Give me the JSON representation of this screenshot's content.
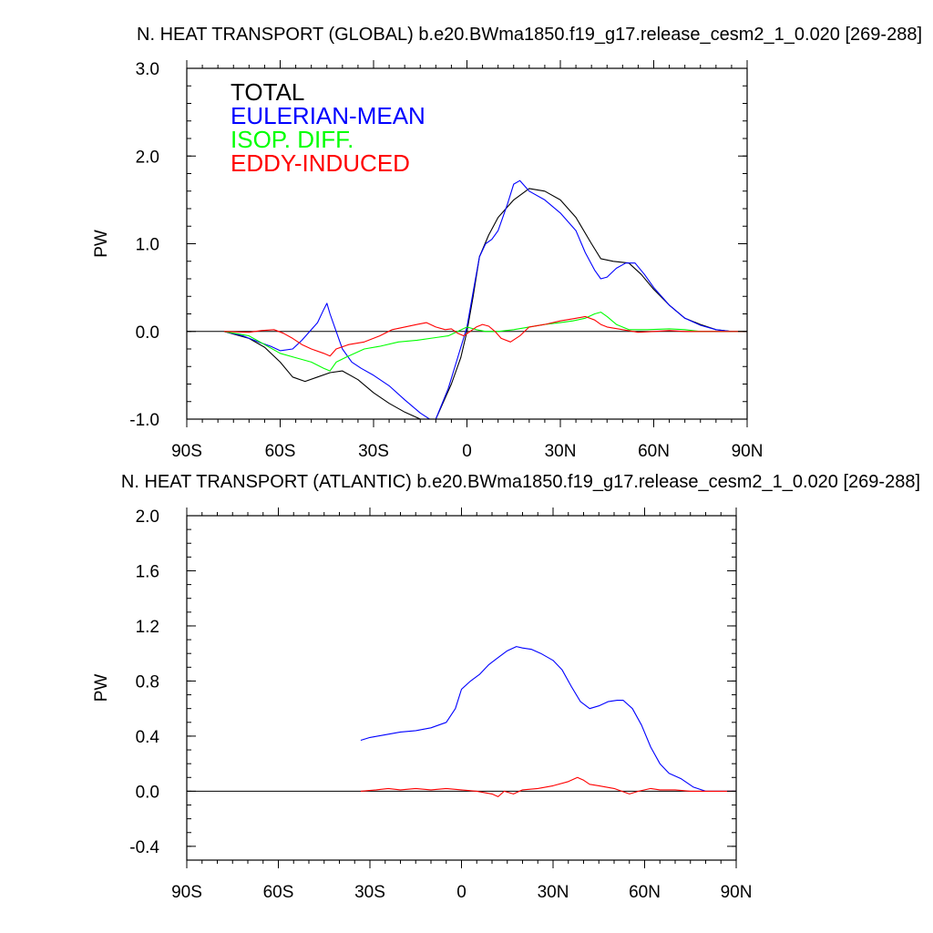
{
  "chart_data": [
    {
      "type": "line",
      "title": "N. HEAT TRANSPORT (GLOBAL) b.e20.BWma1850.f19_g17.release_cesm2_1_0.020 [269-288]",
      "ylabel": "PW",
      "xlabel": "",
      "xlim": [
        -90,
        90
      ],
      "ylim": [
        -1.0,
        3.0
      ],
      "x_ticks": [
        -90,
        -60,
        -30,
        0,
        30,
        60,
        90
      ],
      "x_tick_labels": [
        "90S",
        "60S",
        "30S",
        "0",
        "30N",
        "60N",
        "90N"
      ],
      "y_ticks": [
        -1.0,
        0.0,
        1.0,
        2.0,
        3.0
      ],
      "y_tick_labels": [
        "-1.0",
        "0.0",
        "1.0",
        "2.0",
        "3.0"
      ],
      "legend_position": "top-left",
      "zero_line": true,
      "series": [
        {
          "name": "TOTAL",
          "color": "#000000",
          "x": [
            -78,
            -70,
            -65,
            -60,
            -56,
            -52,
            -48,
            -44,
            -40,
            -35,
            -30,
            -25,
            -20,
            -15,
            -10,
            -5,
            -2,
            0,
            2,
            4,
            7,
            10,
            15,
            20,
            25,
            30,
            35,
            40,
            43,
            47,
            52,
            56,
            60,
            65,
            70,
            75,
            80,
            85,
            90
          ],
          "y": [
            0.0,
            -0.08,
            -0.18,
            -0.35,
            -0.52,
            -0.57,
            -0.52,
            -0.47,
            -0.45,
            -0.55,
            -0.7,
            -0.82,
            -0.92,
            -1.0,
            -1.0,
            -0.6,
            -0.3,
            0.0,
            0.4,
            0.85,
            1.1,
            1.3,
            1.5,
            1.63,
            1.6,
            1.5,
            1.3,
            1.0,
            0.83,
            0.8,
            0.78,
            0.65,
            0.48,
            0.3,
            0.15,
            0.08,
            0.02,
            0.0,
            0.0
          ]
        },
        {
          "name": "EULERIAN-MEAN",
          "color": "#0000ff",
          "x": [
            -78,
            -72,
            -67,
            -63,
            -60,
            -56,
            -53,
            -50,
            -48,
            -46,
            -45,
            -44,
            -42,
            -40,
            -37,
            -34,
            -30,
            -25,
            -20,
            -15,
            -12,
            -10,
            -6,
            -3,
            0,
            2,
            4,
            6,
            8,
            10,
            13,
            15,
            17,
            20,
            25,
            30,
            35,
            38,
            41,
            43,
            45,
            48,
            51,
            54,
            57,
            60,
            65,
            70,
            75,
            80,
            85,
            90
          ],
          "y": [
            0.0,
            -0.05,
            -0.12,
            -0.17,
            -0.22,
            -0.2,
            -0.1,
            0.02,
            0.1,
            0.25,
            0.32,
            0.2,
            0.0,
            -0.2,
            -0.35,
            -0.42,
            -0.5,
            -0.62,
            -0.78,
            -0.93,
            -1.0,
            -1.0,
            -0.65,
            -0.3,
            0.05,
            0.45,
            0.85,
            1.0,
            1.05,
            1.15,
            1.45,
            1.68,
            1.72,
            1.6,
            1.5,
            1.35,
            1.15,
            0.9,
            0.7,
            0.6,
            0.62,
            0.72,
            0.78,
            0.78,
            0.65,
            0.5,
            0.3,
            0.15,
            0.07,
            0.02,
            0.0,
            0.0
          ]
        },
        {
          "name": "ISOP. DIFF.",
          "color": "#00ff00",
          "x": [
            -78,
            -70,
            -65,
            -60,
            -55,
            -50,
            -46,
            -44,
            -42,
            -38,
            -33,
            -28,
            -22,
            -16,
            -10,
            -6,
            -3,
            0,
            3,
            6,
            10,
            15,
            20,
            25,
            30,
            34,
            38,
            41,
            43,
            45,
            48,
            52,
            58,
            65,
            70,
            75,
            80,
            90
          ],
          "y": [
            0.0,
            -0.05,
            -0.15,
            -0.25,
            -0.3,
            -0.35,
            -0.42,
            -0.45,
            -0.35,
            -0.28,
            -0.2,
            -0.17,
            -0.12,
            -0.1,
            -0.07,
            -0.05,
            0.0,
            0.05,
            0.02,
            0.0,
            0.0,
            0.02,
            0.05,
            0.08,
            0.1,
            0.12,
            0.15,
            0.2,
            0.22,
            0.17,
            0.08,
            0.02,
            0.02,
            0.03,
            0.02,
            0.0,
            0.0,
            0.0
          ]
        },
        {
          "name": "EDDY-INDUCED",
          "color": "#ff0000",
          "x": [
            -78,
            -70,
            -66,
            -62,
            -59,
            -56,
            -53,
            -50,
            -46,
            -44,
            -42,
            -38,
            -33,
            -28,
            -24,
            -20,
            -16,
            -13,
            -10,
            -7,
            -5,
            -3,
            -1,
            1,
            3,
            5,
            7,
            9,
            11,
            14,
            17,
            20,
            25,
            30,
            35,
            38,
            41,
            43,
            45,
            50,
            55,
            60,
            65,
            70,
            80,
            90
          ],
          "y": [
            0.0,
            -0.01,
            0.01,
            0.02,
            -0.02,
            -0.08,
            -0.15,
            -0.2,
            -0.25,
            -0.28,
            -0.2,
            -0.15,
            -0.12,
            -0.05,
            0.02,
            0.05,
            0.08,
            0.1,
            0.05,
            0.02,
            0.03,
            -0.02,
            -0.05,
            0.0,
            0.05,
            0.08,
            0.06,
            0.0,
            -0.08,
            -0.12,
            -0.05,
            0.05,
            0.08,
            0.12,
            0.15,
            0.17,
            0.13,
            0.08,
            0.05,
            0.02,
            -0.01,
            0.0,
            0.01,
            0.0,
            0.0,
            0.0
          ]
        }
      ]
    },
    {
      "type": "line",
      "title": "N. HEAT TRANSPORT (ATLANTIC) b.e20.BWma1850.f19_g17.release_cesm2_1_0.020 [269-288]",
      "ylabel": "PW",
      "xlabel": "",
      "xlim": [
        -90,
        90
      ],
      "ylim": [
        -0.5,
        2.0
      ],
      "x_ticks": [
        -90,
        -60,
        -30,
        0,
        30,
        60,
        90
      ],
      "x_tick_labels": [
        "90S",
        "60S",
        "30S",
        "0",
        "30N",
        "60N",
        "90N"
      ],
      "y_ticks": [
        -0.4,
        0.0,
        0.4,
        0.8,
        1.2,
        1.6,
        2.0
      ],
      "y_tick_labels": [
        "-0.4",
        "0.0",
        "0.4",
        "0.8",
        "1.2",
        "1.6",
        "2.0"
      ],
      "zero_line": true,
      "series": [
        {
          "name": "EULERIAN-MEAN",
          "color": "#0000ff",
          "x": [
            -33,
            -30,
            -25,
            -20,
            -15,
            -10,
            -5,
            -2,
            0,
            3,
            6,
            9,
            12,
            15,
            18,
            20,
            23,
            26,
            30,
            33,
            36,
            39,
            42,
            45,
            48,
            51,
            53,
            56,
            59,
            62,
            65,
            68,
            72,
            76,
            80,
            85,
            90
          ],
          "y": [
            0.37,
            0.39,
            0.41,
            0.43,
            0.44,
            0.46,
            0.5,
            0.6,
            0.74,
            0.8,
            0.85,
            0.92,
            0.97,
            1.02,
            1.05,
            1.04,
            1.03,
            1.0,
            0.95,
            0.88,
            0.76,
            0.65,
            0.6,
            0.62,
            0.65,
            0.66,
            0.66,
            0.6,
            0.48,
            0.32,
            0.2,
            0.13,
            0.09,
            0.03,
            0.0,
            0.0,
            0.0
          ]
        },
        {
          "name": "EDDY-INDUCED",
          "color": "#ff0000",
          "x": [
            -33,
            -28,
            -24,
            -20,
            -15,
            -10,
            -5,
            0,
            5,
            10,
            12,
            14,
            17,
            20,
            25,
            30,
            35,
            38,
            40,
            42,
            45,
            50,
            55,
            58,
            62,
            65,
            70,
            75,
            80,
            90
          ],
          "y": [
            0.0,
            0.01,
            0.02,
            0.01,
            0.02,
            0.01,
            0.02,
            0.01,
            0.0,
            -0.02,
            -0.04,
            0.0,
            -0.02,
            0.01,
            0.02,
            0.04,
            0.07,
            0.1,
            0.08,
            0.05,
            0.04,
            0.02,
            -0.02,
            0.0,
            0.02,
            0.01,
            0.01,
            0.0,
            0.0,
            0.0
          ]
        }
      ]
    }
  ]
}
